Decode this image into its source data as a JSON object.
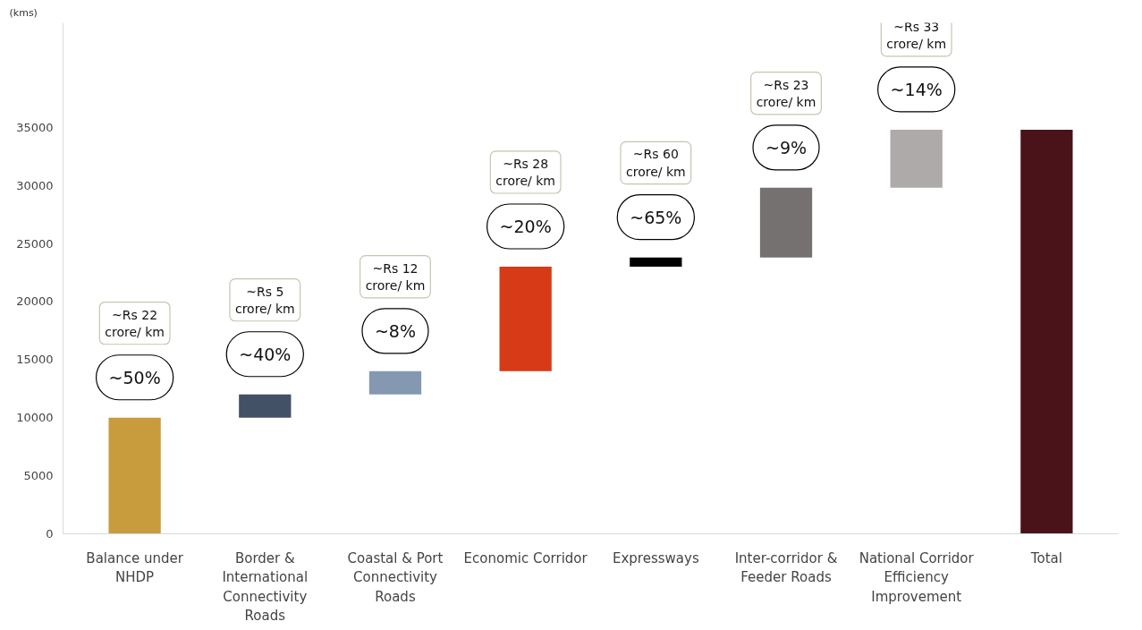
{
  "chart_data": {
    "type": "bar",
    "ylabel": "(kms)",
    "categories": [
      "Balance under NHDP",
      "Border & International Connectivity Roads",
      "Coastal & Port Connectivity Roads",
      "Economic Corridor",
      "Expressways",
      "Inter-corridor & Feeder Roads",
      "National Corridor Efficiency Improvement",
      "Total"
    ],
    "values": [
      10000,
      2000,
      2000,
      9000,
      800,
      6000,
      5000,
      34800
    ],
    "base": [
      0,
      10000,
      12000,
      14000,
      23000,
      23800,
      29800,
      0
    ],
    "colors": [
      "#c89b3c",
      "#435166",
      "#8499b1",
      "#d63a17",
      "#000000",
      "#767171",
      "#aeaaaa",
      "#4a1219"
    ],
    "ylim": [
      0,
      44000
    ],
    "yticks": [
      0,
      5000,
      10000,
      15000,
      20000,
      25000,
      30000,
      35000
    ],
    "grid": false,
    "annotations": [
      {
        "text": "~50%",
        "x": "Balance under NHDP",
        "y": 10000
      },
      "~Rs 22\ncrore/ km",
      {
        "text": "~40%",
        "x": "Border & International Connectivity Roads",
        "y": 12000
      },
      "~Rs 5\ncrore/ km",
      {
        "text": "~8%",
        "x": "Coastal & Port Connectivity Roads",
        "y": 14000
      },
      "~Rs 12\ncrore/ km",
      {
        "text": "~20%",
        "x": "Economic Corridor",
        "y": 23000
      },
      "~Rs 28\ncrore/ km",
      {
        "text": "~65%",
        "x": "Expressways",
        "y": 23800
      },
      "~Rs 60\ncrore/ km",
      {
        "text": "~9%",
        "x": "Inter-corridor & Feeder Roads",
        "y": 29800
      },
      "~Rs 23\ncrore/ km",
      {
        "text": "~14%",
        "x": "National Corridor Efficiency Improvement",
        "y": 34800
      },
      "~Rs 33\ncrore/ km"
    ]
  }
}
